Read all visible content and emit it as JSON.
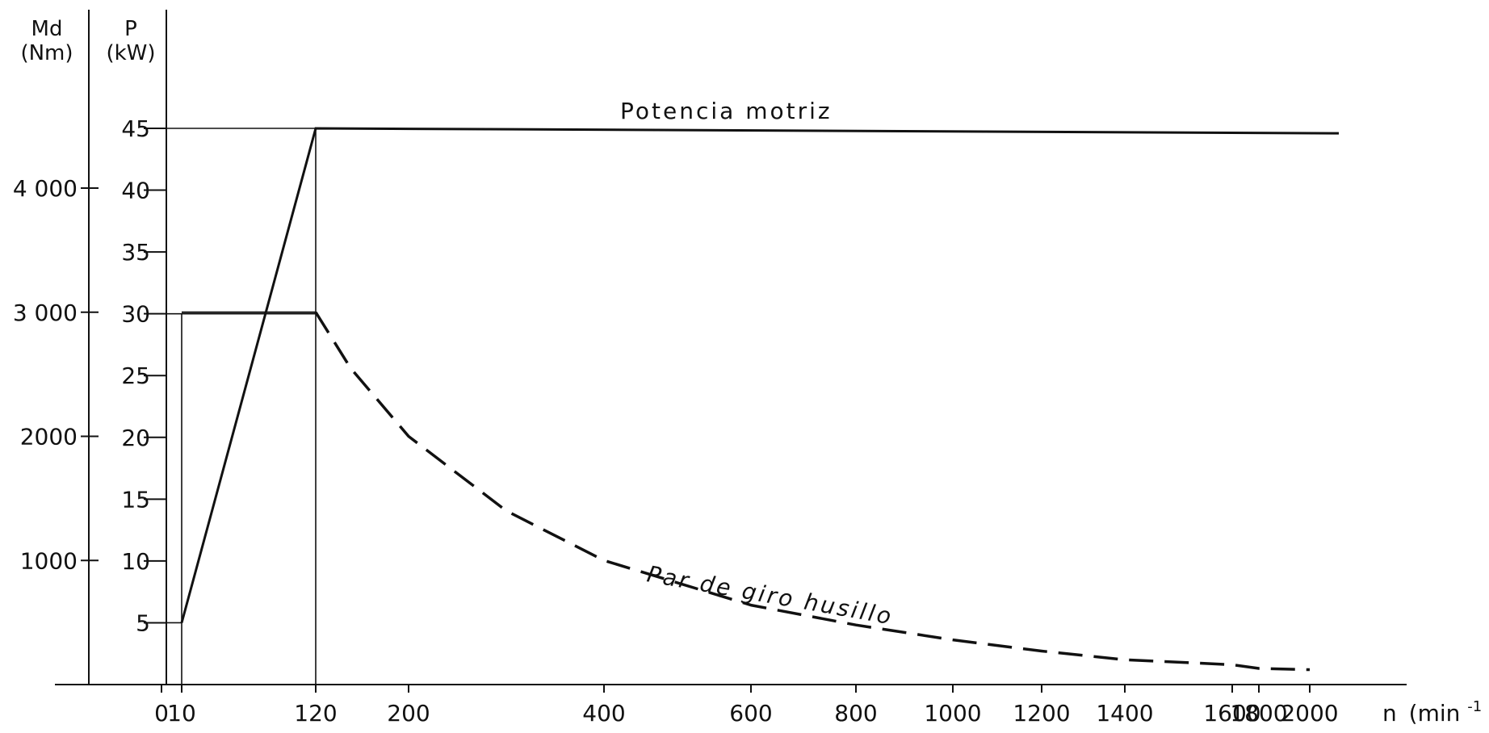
{
  "chart_data": {
    "type": "line",
    "x_axis": {
      "label": "n",
      "unit": "(min",
      "unit_superscript": "-1",
      "unit_close": ")",
      "scale": "nonlinear",
      "ticks": [
        {
          "value": 0,
          "label": "0"
        },
        {
          "value": 10,
          "label": "10"
        },
        {
          "value": 120,
          "label": "120"
        },
        {
          "value": 200,
          "label": "200"
        },
        {
          "value": 400,
          "label": "400"
        },
        {
          "value": 600,
          "label": "600"
        },
        {
          "value": 800,
          "label": "800"
        },
        {
          "value": 1000,
          "label": "1000"
        },
        {
          "value": 1200,
          "label": "1200"
        },
        {
          "value": 1400,
          "label": "1400"
        },
        {
          "value": 1600,
          "label": "1600"
        },
        {
          "value": 1800,
          "label": "1800"
        },
        {
          "value": 2000,
          "label": "2000"
        }
      ]
    },
    "y_axis_torque": {
      "label": "Md",
      "unit": "(Nm)",
      "range": [
        0,
        4500
      ],
      "ticks": [
        {
          "value": 1000,
          "label": "1000"
        },
        {
          "value": 2000,
          "label": "2000"
        },
        {
          "value": 3000,
          "label": "3 000"
        },
        {
          "value": 4000,
          "label": "4 000"
        }
      ]
    },
    "y_axis_power": {
      "label": "P",
      "unit": "(kW)",
      "range": [
        0,
        45
      ],
      "ticks": [
        {
          "value": 5,
          "label": "5"
        },
        {
          "value": 10,
          "label": "10"
        },
        {
          "value": 15,
          "label": "15"
        },
        {
          "value": 20,
          "label": "20"
        },
        {
          "value": 25,
          "label": "25"
        },
        {
          "value": 30,
          "label": "30"
        },
        {
          "value": 35,
          "label": "35"
        },
        {
          "value": 40,
          "label": "40"
        },
        {
          "value": 45,
          "label": "45"
        }
      ]
    },
    "series": [
      {
        "name": "Potencia motriz",
        "axis": "power",
        "style": "solid",
        "points": [
          {
            "x": 10,
            "y": 5
          },
          {
            "x": 120,
            "y": 45
          },
          {
            "x": 2060,
            "y": 44.6
          }
        ]
      },
      {
        "name": "Par de giro husillo",
        "axis": "torque",
        "style": "solid-then-dashed",
        "points": [
          {
            "x": 10,
            "y": 3000
          },
          {
            "x": 120,
            "y": 3000
          },
          {
            "x": 150,
            "y": 2550
          },
          {
            "x": 200,
            "y": 2000
          },
          {
            "x": 300,
            "y": 1400
          },
          {
            "x": 400,
            "y": 1000
          },
          {
            "x": 600,
            "y": 640
          },
          {
            "x": 800,
            "y": 480
          },
          {
            "x": 1000,
            "y": 360
          },
          {
            "x": 1200,
            "y": 270
          },
          {
            "x": 1400,
            "y": 200
          },
          {
            "x": 1600,
            "y": 160
          },
          {
            "x": 1800,
            "y": 130
          },
          {
            "x": 2000,
            "y": 120
          }
        ]
      }
    ],
    "reference_lines": [
      {
        "type": "vertical",
        "x": 10,
        "y_top_power": 30
      },
      {
        "type": "vertical",
        "x": 120,
        "y_top_power": 45
      },
      {
        "type": "horizontal",
        "axis": "power",
        "y": 45,
        "from_x": 0,
        "to_x": 120
      },
      {
        "type": "horizontal",
        "axis": "power",
        "y": 30,
        "from_x": 0,
        "to_x": 120
      },
      {
        "type": "horizontal",
        "axis": "power",
        "y": 5,
        "from_x": 0,
        "to_x": 10
      }
    ]
  }
}
